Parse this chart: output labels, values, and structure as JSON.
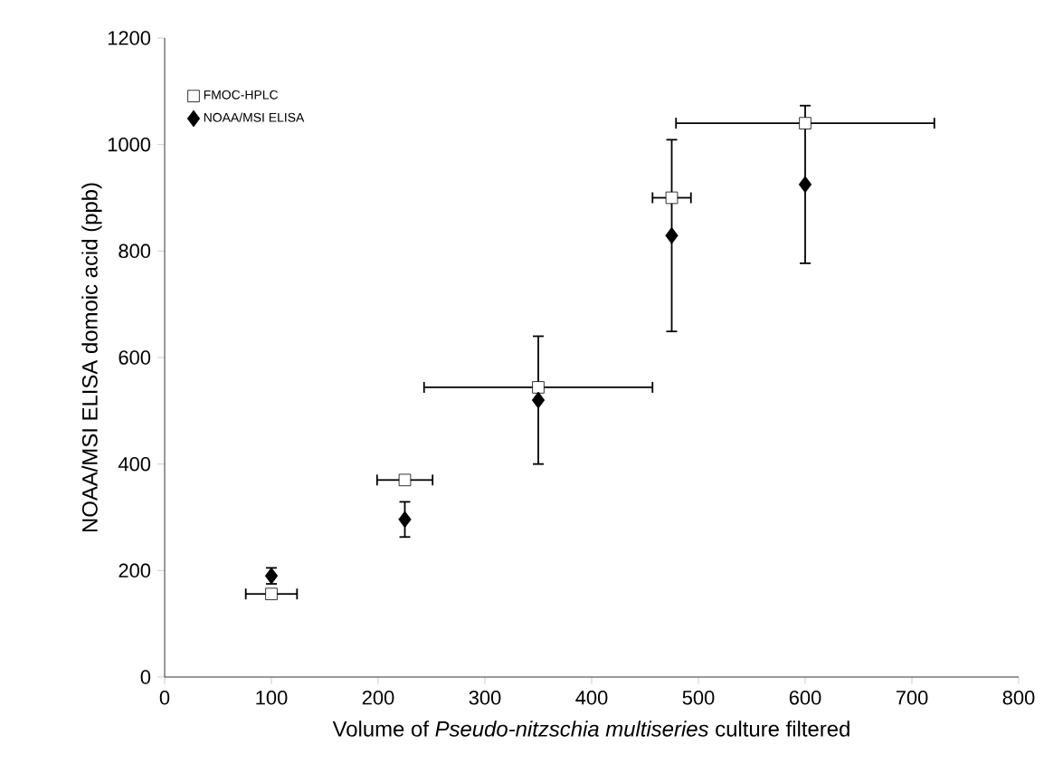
{
  "chart_data": {
    "type": "scatter",
    "xlabel": "Volume of *Pseudo-nitzschia multiseries* culture filtered",
    "ylabel": "NOAA/MSI ELISA domoic acid (ppb)",
    "x": [
      100,
      225,
      350,
      475,
      600
    ],
    "series": [
      {
        "name": "FMOC-HPLC",
        "color": "#000000",
        "marker": "square",
        "values": [
          156,
          370,
          544,
          900,
          1040
        ],
        "xerrors": [
          24,
          26,
          107,
          18,
          121
        ]
      },
      {
        "name": "NOAA/MSI ELISA",
        "color": "#000000",
        "marker": "diamond",
        "values": [
          190,
          296,
          520,
          829,
          925
        ],
        "errors": [
          15,
          33,
          120,
          180,
          148
        ]
      }
    ],
    "xlim": [
      0,
      800
    ],
    "xticks": [
      0,
      100,
      200,
      300,
      400,
      500,
      600,
      700,
      800
    ],
    "ylim": [
      0,
      1200
    ],
    "yticks": [
      0,
      200,
      400,
      600,
      800,
      1000,
      1200
    ],
    "legend": "top left",
    "grid": false
  }
}
